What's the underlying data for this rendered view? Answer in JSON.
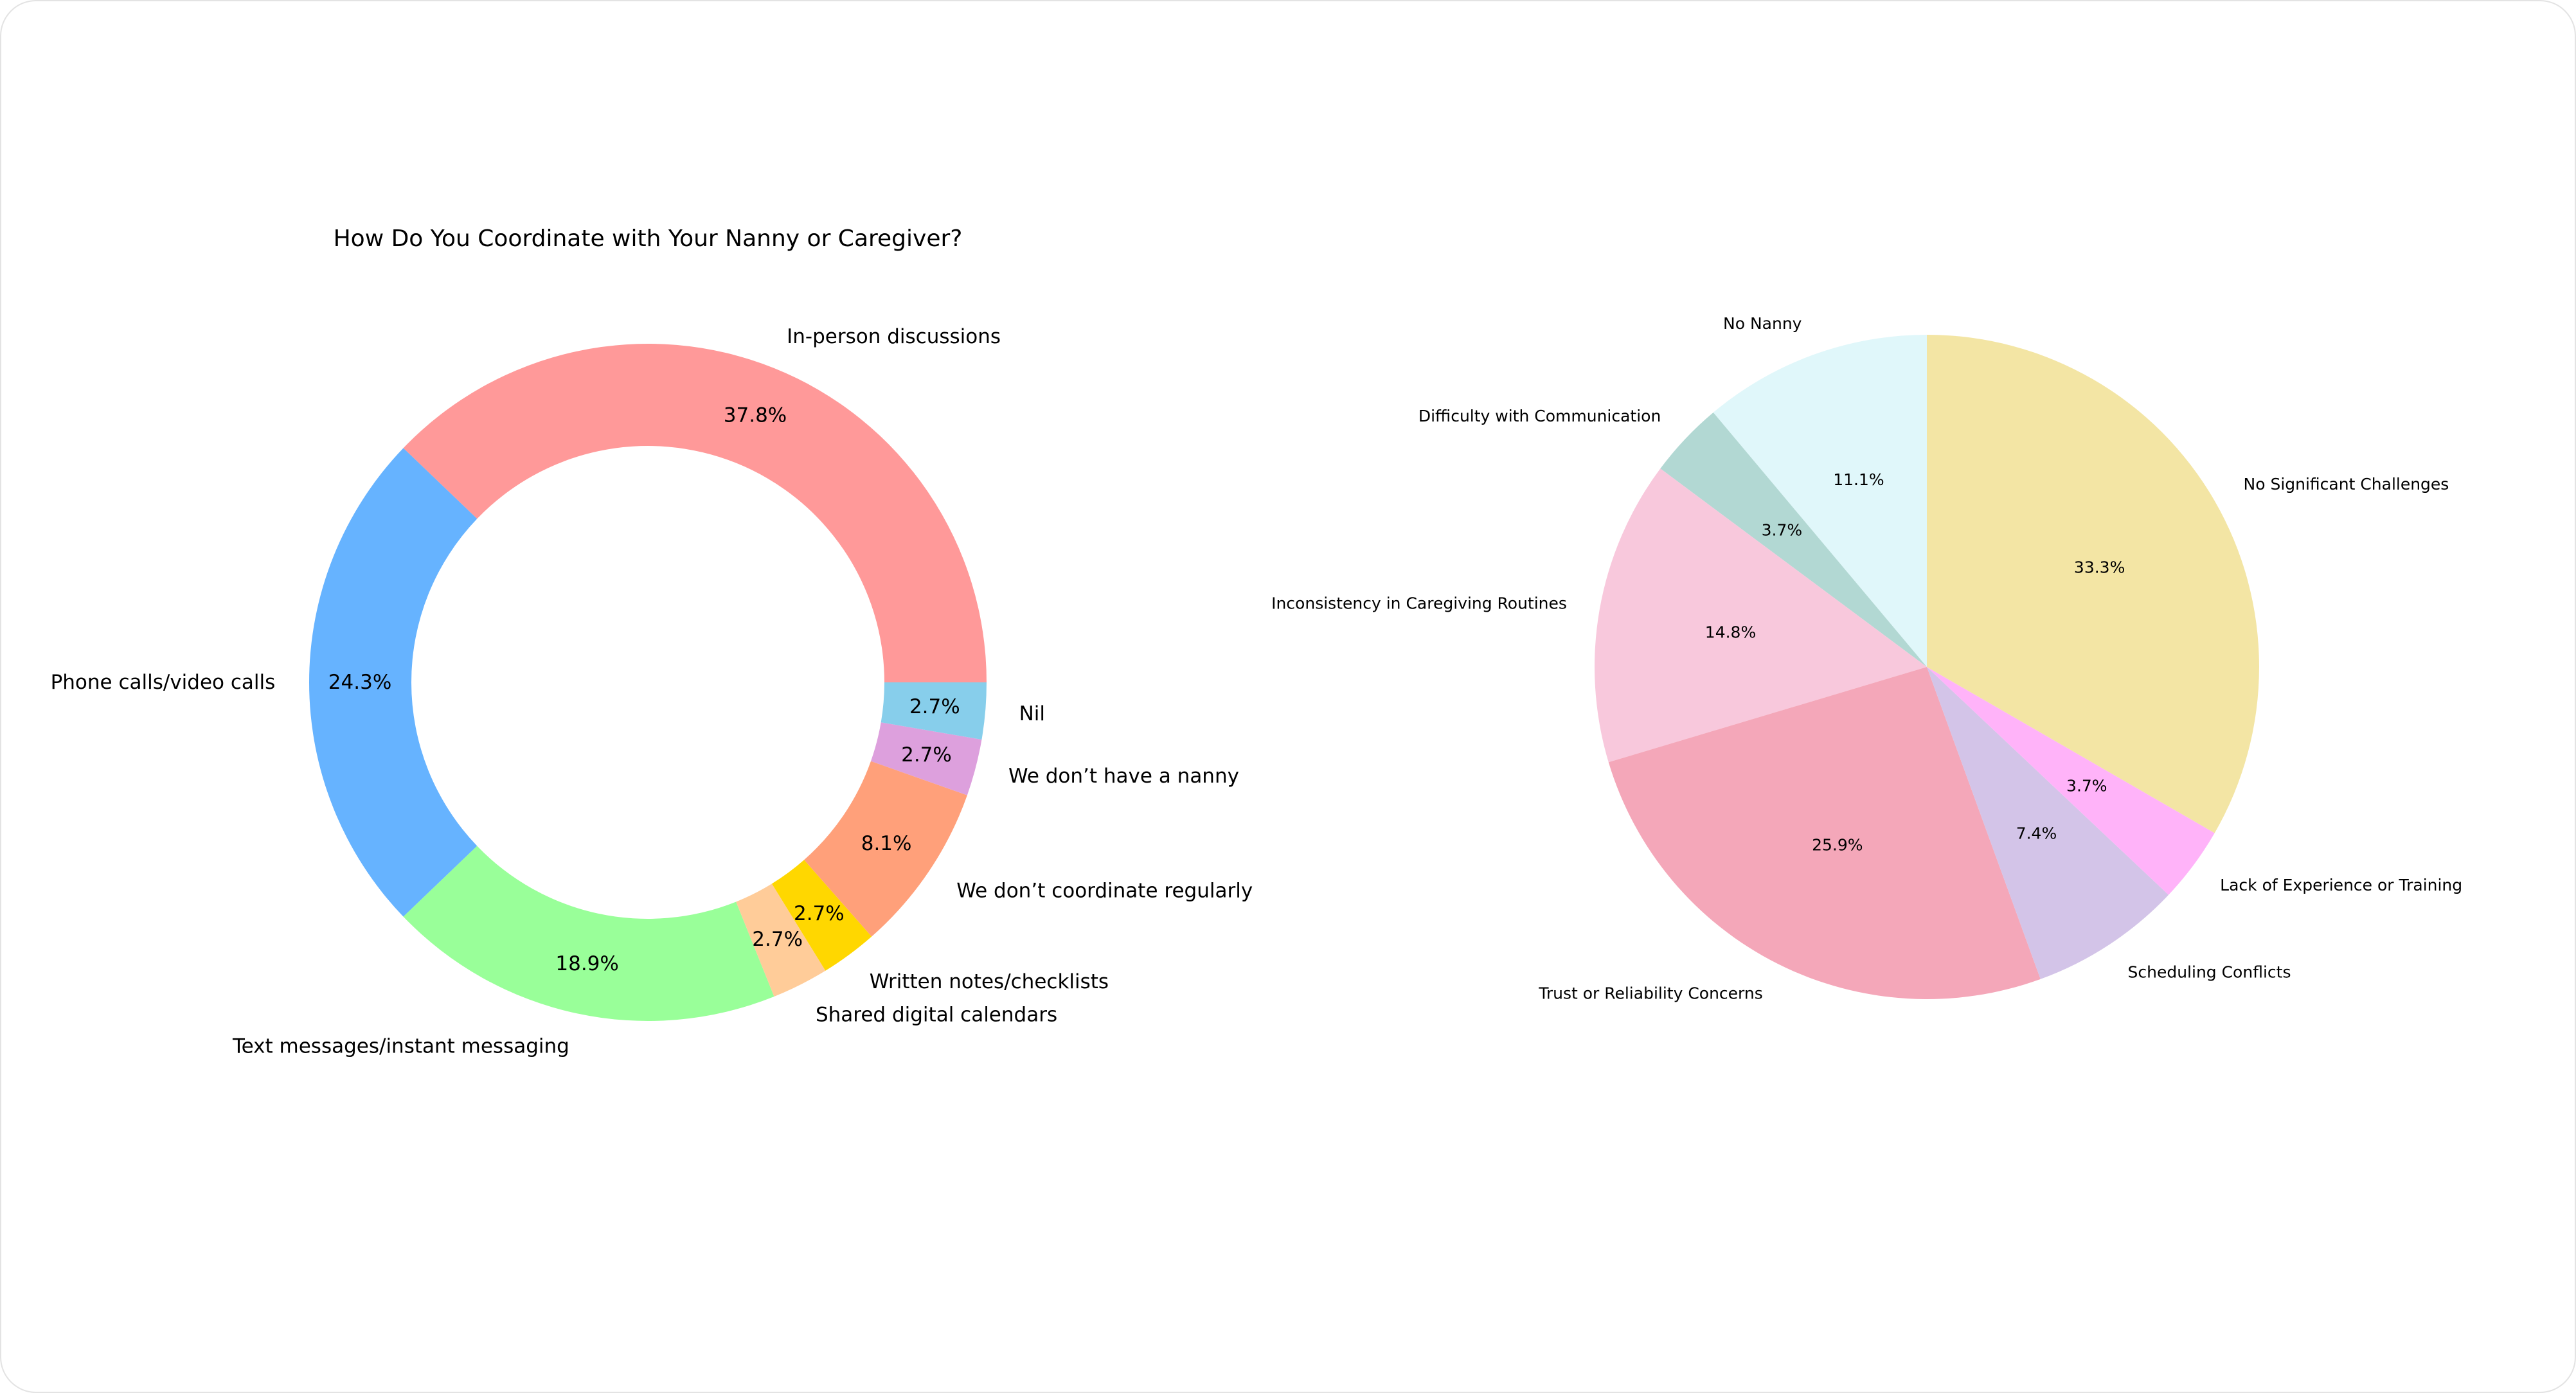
{
  "chart_data": [
    {
      "type": "donut",
      "title": "How Do You Coordinate with Your Nanny or Caregiver?",
      "categories": [
        "In-person discussions",
        "Phone calls/video calls",
        "Text messages/instant messaging",
        "Shared digital calendars",
        "Written notes/checklists",
        "We don’t coordinate regularly",
        "We don’t have a nanny",
        "Nil"
      ],
      "values": [
        37.8,
        24.3,
        18.9,
        2.7,
        2.7,
        8.1,
        2.7,
        2.7
      ],
      "value_labels": [
        "37.8%",
        "24.3%",
        "18.9%",
        "2.7%",
        "2.7%",
        "8.1%",
        "2.7%",
        "2.7%"
      ],
      "colors": [
        "#ff9999",
        "#66b3ff",
        "#99ff99",
        "#ffcc99",
        "#ffd700",
        "#ffa07a",
        "#dda0dd",
        "#87ceeb"
      ],
      "start_angle": 0,
      "direction": "counterclockwise",
      "legend": "none"
    },
    {
      "type": "pie",
      "title": "",
      "categories": [
        "No Nanny",
        "Difficulty with Communication",
        "Inconsistency in Caregiving Routines",
        "Trust or Reliability Concerns",
        "Scheduling Conflicts",
        "Lack of Experience or Training",
        "No Significant Challenges"
      ],
      "values": [
        11.1,
        3.7,
        14.8,
        25.9,
        7.4,
        3.7,
        33.3
      ],
      "value_labels": [
        "11.1%",
        "3.7%",
        "14.8%",
        "25.9%",
        "7.4%",
        "3.7%",
        "33.3%"
      ],
      "colors": [
        "#e0f7fa",
        "#b2d8d3",
        "#f8c8dc",
        "#f4a7b9",
        "#d3c4e8",
        "#ffb3f9",
        "#f3e5a4"
      ],
      "start_angle": 90,
      "direction": "counterclockwise",
      "legend": "none"
    }
  ]
}
